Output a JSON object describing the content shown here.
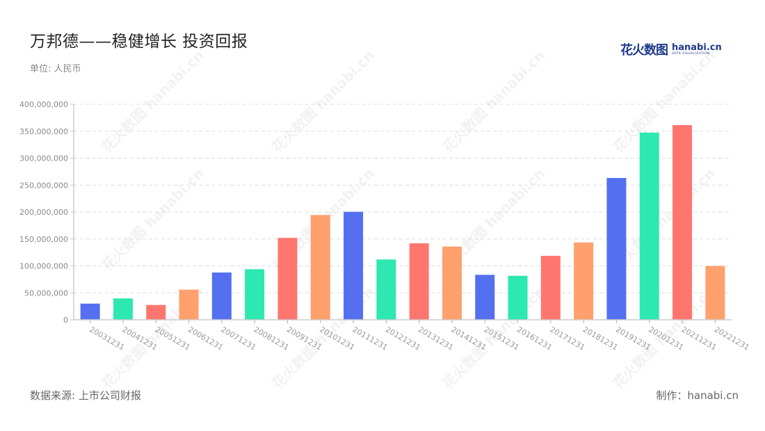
{
  "header": {
    "title": "万邦德——稳健增长 投资回报",
    "unit": "单位: 人民币"
  },
  "logo": {
    "cn": "花火数图",
    "en": "hanabi.cn",
    "tagline": "DATA VISUALIZATION"
  },
  "footer": {
    "source": "数据来源: 上市公司财报",
    "credit": "制作：hanabi.cn"
  },
  "watermark": "花火数图 hanabi.cn",
  "colors": [
    "#5470f0",
    "#2de8b0",
    "#ff766f",
    "#ffa06d"
  ],
  "chart_data": {
    "type": "bar",
    "title": "万邦德——稳健增长 投资回报",
    "xlabel": "",
    "ylabel": "单位: 人民币",
    "ylim": [
      0,
      400000000
    ],
    "yticks": [
      "0",
      "50,000,000",
      "100,000,000",
      "150,000,000",
      "200,000,000",
      "250,000,000",
      "300,000,000",
      "350,000,000",
      "400,000,000"
    ],
    "grid": true,
    "legend": false,
    "categories": [
      "20031231",
      "20041231",
      "20051231",
      "20061231",
      "20071231",
      "20081231",
      "20091231",
      "20101231",
      "20111231",
      "20121231",
      "20131231",
      "20141231",
      "20151231",
      "20161231",
      "20171231",
      "20181231",
      "20191231",
      "20201231",
      "20211231",
      "20221231"
    ],
    "values": [
      30000000,
      39600000,
      27500000,
      55900000,
      87700000,
      93800000,
      152000000,
      194400000,
      200400000,
      111900000,
      141900000,
      135900000,
      83400000,
      81700000,
      118700000,
      143600000,
      263200000,
      347500000,
      361300000,
      99800000
    ]
  }
}
